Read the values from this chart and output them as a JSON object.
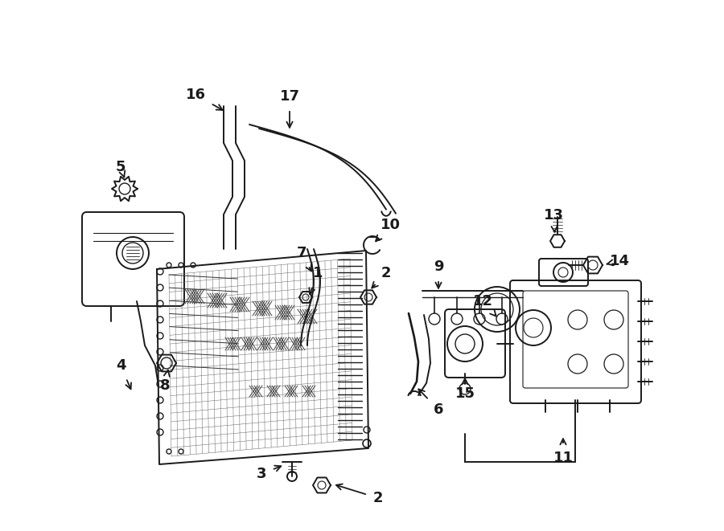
{
  "bg_color": "#ffffff",
  "line_color": "#1a1a1a",
  "text_color": "#1a1a1a",
  "figsize": [
    9.0,
    6.61
  ],
  "dpi": 100
}
